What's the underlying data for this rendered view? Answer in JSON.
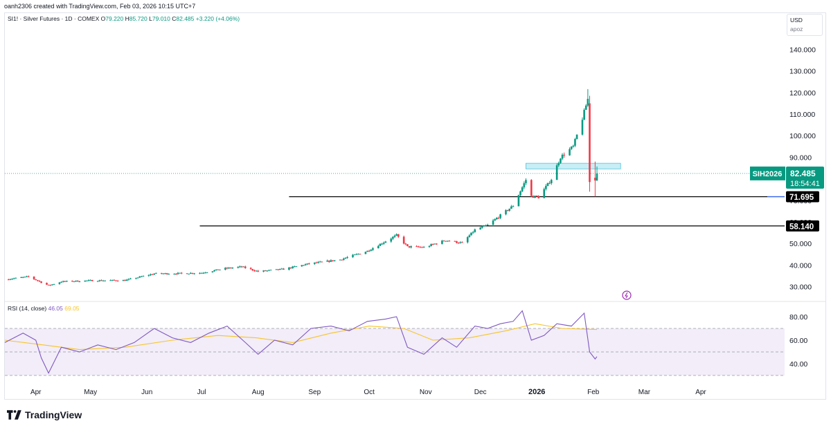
{
  "header": {
    "author_line": "oanh2306 created with TradingView.com, Feb 03, 2026 10:15 UTC+7"
  },
  "legend": {
    "symbol": "SI1! · Silver Futures · 1D · COMEX",
    "o_label": "O",
    "o_value": "79.220",
    "h_label": "H",
    "h_value": "85.720",
    "l_label": "L",
    "l_value": "79.010",
    "c_label": "C",
    "c_value": "82.485",
    "change": "+3.220 (+4.06%)"
  },
  "rsi_legend": {
    "title": "RSI (14, close)",
    "rsi_value": "46.05",
    "ma_value": "69.05"
  },
  "currency_box": {
    "currency": "USD",
    "scale": "apoz"
  },
  "price_tag": {
    "ticker": "SIH2026",
    "price": "82.485",
    "countdown": "18:54:41"
  },
  "levels": [
    {
      "label": "71.695",
      "value": 71.695
    },
    {
      "label": "58.140",
      "value": 58.14
    }
  ],
  "branding": {
    "logo_text": "TradingView"
  },
  "colors": {
    "up": "#089981",
    "down": "#f23645",
    "rsi": "#7e57c2",
    "rsi_ma": "#f7c427",
    "zone": "#a5e3ee",
    "rsi_band": "#ede7f6",
    "tag": "#089981"
  },
  "chart_data": [
    {
      "type": "candlestick",
      "title": "SI1! · Silver Futures · 1D · COMEX",
      "x_tick_labels": [
        "Apr",
        "May",
        "Jun",
        "Jul",
        "Aug",
        "Sep",
        "Oct",
        "Nov",
        "Dec",
        "2026",
        "Feb",
        "Mar",
        "Apr"
      ],
      "y_tick_labels": [
        "30.000",
        "40.000",
        "50.000",
        "60.000",
        "70.000",
        "80.000",
        "90.000",
        "100.000",
        "110.000",
        "120.000",
        "130.000",
        "140.000"
      ],
      "ylim": [
        25,
        147
      ],
      "last_close": 82.485,
      "horizontal_lines": [
        71.695,
        58.14
      ],
      "zone": {
        "from": "2025-12-26",
        "to": "2026-02-16",
        "low": 84.6,
        "high": 87.2
      },
      "price_path": [
        [
          "2025-03-15",
          33.3
        ],
        [
          "2025-03-28",
          34.6
        ],
        [
          "2025-04-04",
          32.0
        ],
        [
          "2025-04-08",
          30.5
        ],
        [
          "2025-04-15",
          32.3
        ],
        [
          "2025-05-01",
          32.8
        ],
        [
          "2025-05-20",
          32.9
        ],
        [
          "2025-06-05",
          36.0
        ],
        [
          "2025-06-20",
          36.1
        ],
        [
          "2025-07-01",
          36.4
        ],
        [
          "2025-07-14",
          38.4
        ],
        [
          "2025-07-23",
          39.2
        ],
        [
          "2025-08-01",
          37.0
        ],
        [
          "2025-08-15",
          38.1
        ],
        [
          "2025-08-29",
          40.6
        ],
        [
          "2025-09-15",
          42.5
        ],
        [
          "2025-09-30",
          46.5
        ],
        [
          "2025-10-16",
          53.8
        ],
        [
          "2025-10-22",
          48.5
        ],
        [
          "2025-10-31",
          48.2
        ],
        [
          "2025-11-12",
          51.5
        ],
        [
          "2025-11-21",
          50.2
        ],
        [
          "2025-11-28",
          56.3
        ],
        [
          "2025-12-05",
          58.5
        ],
        [
          "2025-12-12",
          63.0
        ],
        [
          "2025-12-19",
          67.5
        ],
        [
          "2025-12-26",
          79.5
        ],
        [
          "2025-12-29",
          71.9
        ],
        [
          "2026-01-02",
          71.5
        ],
        [
          "2026-01-09",
          79.8
        ],
        [
          "2026-01-14",
          90.0
        ],
        [
          "2026-01-21",
          95.0
        ],
        [
          "2026-01-26",
          108.0
        ],
        [
          "2026-01-29",
          117.0
        ],
        [
          "2026-01-30",
          78.5
        ],
        [
          "2026-02-02",
          79.2
        ],
        [
          "2026-02-03",
          82.485
        ]
      ]
    },
    {
      "type": "line",
      "title": "RSI (14, close)",
      "ylim": [
        30,
        88
      ],
      "y_tick_labels": [
        "40.00",
        "60.00",
        "80.00"
      ],
      "bands": [
        30,
        50,
        70
      ],
      "series": [
        {
          "name": "RSI",
          "points": [
            [
              "2025-03-15",
              58
            ],
            [
              "2025-03-25",
              66
            ],
            [
              "2025-04-01",
              60
            ],
            [
              "2025-04-04",
              45
            ],
            [
              "2025-04-08",
              32
            ],
            [
              "2025-04-15",
              54
            ],
            [
              "2025-04-25",
              50
            ],
            [
              "2025-05-05",
              56
            ],
            [
              "2025-05-15",
              52
            ],
            [
              "2025-05-25",
              58
            ],
            [
              "2025-06-05",
              70
            ],
            [
              "2025-06-15",
              62
            ],
            [
              "2025-06-25",
              58
            ],
            [
              "2025-07-05",
              66
            ],
            [
              "2025-07-15",
              72
            ],
            [
              "2025-07-25",
              58
            ],
            [
              "2025-08-01",
              48
            ],
            [
              "2025-08-10",
              60
            ],
            [
              "2025-08-20",
              56
            ],
            [
              "2025-08-30",
              70
            ],
            [
              "2025-09-10",
              72
            ],
            [
              "2025-09-20",
              68
            ],
            [
              "2025-09-30",
              76
            ],
            [
              "2025-10-10",
              78
            ],
            [
              "2025-10-16",
              80
            ],
            [
              "2025-10-22",
              54
            ],
            [
              "2025-10-31",
              48
            ],
            [
              "2025-11-10",
              62
            ],
            [
              "2025-11-18",
              54
            ],
            [
              "2025-11-28",
              72
            ],
            [
              "2025-12-05",
              70
            ],
            [
              "2025-12-12",
              74
            ],
            [
              "2025-12-19",
              76
            ],
            [
              "2025-12-24",
              85
            ],
            [
              "2025-12-29",
              60
            ],
            [
              "2026-01-05",
              64
            ],
            [
              "2026-01-12",
              74
            ],
            [
              "2026-01-20",
              72
            ],
            [
              "2026-01-27",
              83
            ],
            [
              "2026-01-30",
              50
            ],
            [
              "2026-02-02",
              44
            ],
            [
              "2026-02-03",
              46.05
            ]
          ]
        },
        {
          "name": "RSI-based MA",
          "points": [
            [
              "2025-03-15",
              60
            ],
            [
              "2025-04-05",
              56
            ],
            [
              "2025-04-25",
              52
            ],
            [
              "2025-05-20",
              54
            ],
            [
              "2025-06-15",
              60
            ],
            [
              "2025-07-10",
              64
            ],
            [
              "2025-07-31",
              62
            ],
            [
              "2025-08-20",
              58
            ],
            [
              "2025-09-10",
              66
            ],
            [
              "2025-10-01",
              72
            ],
            [
              "2025-10-20",
              70
            ],
            [
              "2025-11-05",
              60
            ],
            [
              "2025-11-25",
              62
            ],
            [
              "2025-12-15",
              68
            ],
            [
              "2025-12-31",
              74
            ],
            [
              "2026-01-15",
              70
            ],
            [
              "2026-02-03",
              69.05
            ]
          ]
        }
      ]
    }
  ]
}
